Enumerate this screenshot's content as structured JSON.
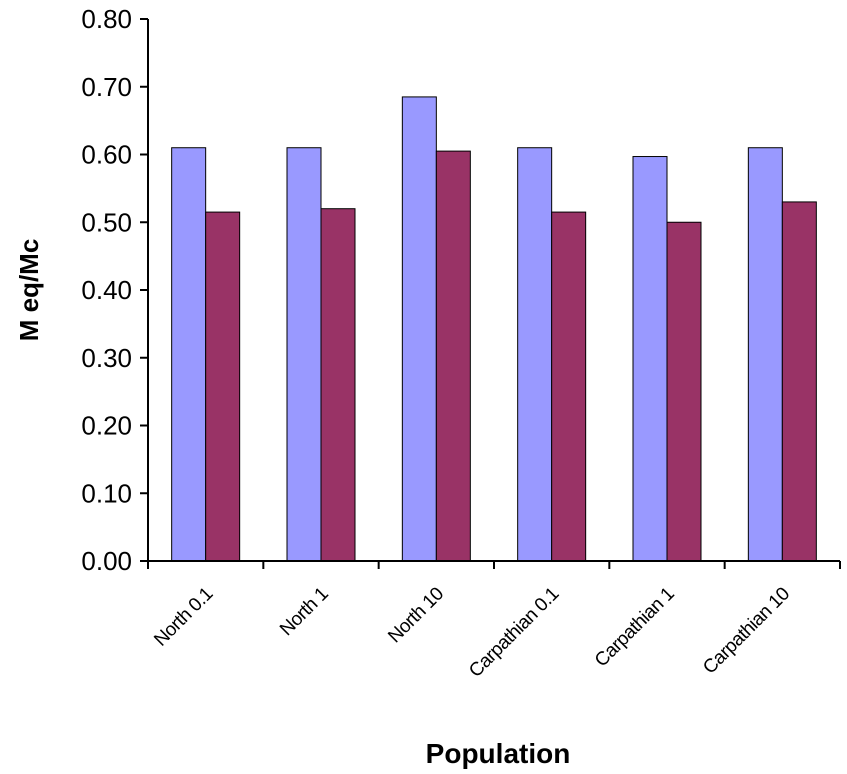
{
  "chart_data": {
    "type": "bar",
    "categories": [
      "North 0.1",
      "North 1",
      "North 10",
      "Carpathian 0.1",
      "Carpathian 1",
      "Carpathian 10"
    ],
    "series": [
      {
        "values": [
          0.61,
          0.61,
          0.685,
          0.61,
          0.597,
          0.61
        ]
      },
      {
        "values": [
          0.515,
          0.52,
          0.605,
          0.515,
          0.5,
          0.53
        ]
      }
    ],
    "title": "",
    "xlabel": "Population",
    "ylabel": "M eq/Mc",
    "ylim": [
      0,
      0.8
    ],
    "yticks": [
      "0.00",
      "0.10",
      "0.20",
      "0.30",
      "0.40",
      "0.50",
      "0.60",
      "0.70",
      "0.80"
    ],
    "grid": false,
    "legend": "none",
    "colors": [
      "#9999ff",
      "#993366"
    ]
  }
}
